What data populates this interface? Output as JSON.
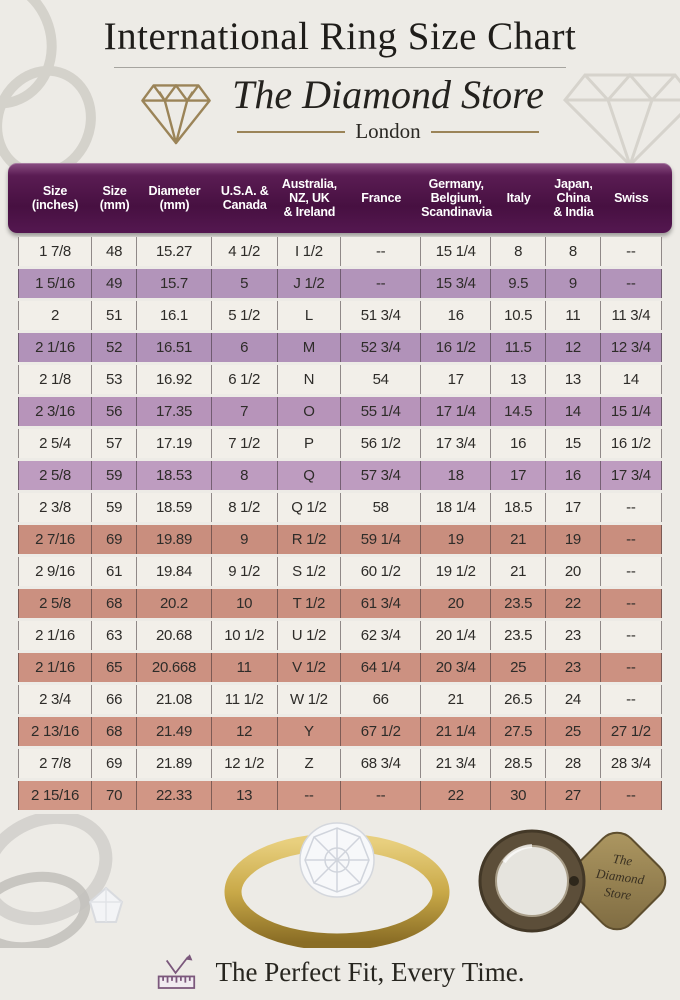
{
  "page": {
    "title": "International Ring Size Chart",
    "brand": {
      "name": "The Diamond Store",
      "city": "London"
    },
    "tagline": "The Perfect Fit, Every Time."
  },
  "photos": {
    "loupe_text_lines": [
      "The",
      "Diamond",
      "Store"
    ]
  },
  "table": {
    "columns": [
      "Size\n(inches)",
      "Size\n(mm)",
      "Diameter\n(mm)",
      "U.S.A. &\nCanada",
      "Australia,\nNZ, UK\n& Ireland",
      "France",
      "Germany,\nBelgium,\nScandinavia",
      "Italy",
      "Japan,\nChina\n& India",
      "Swiss"
    ],
    "rows": [
      {
        "bg": "#f2efe9",
        "cells": [
          "1 7/8",
          "48",
          "15.27",
          "4 1/2",
          "I 1/2",
          "--",
          "15 1/4",
          "8",
          "8",
          "--"
        ]
      },
      {
        "bg": "#b294ba",
        "cells": [
          "1 5/16",
          "49",
          "15.7",
          "5",
          "J 1/2",
          "--",
          "15 3/4",
          "9.5",
          "9",
          "--"
        ]
      },
      {
        "bg": "#f2efe9",
        "cells": [
          "2",
          "51",
          "16.1",
          "5 1/2",
          "L",
          "51 3/4",
          "16",
          "10.5",
          "11",
          "11 3/4"
        ]
      },
      {
        "bg": "#b192b9",
        "cells": [
          "2 1/16",
          "52",
          "16.51",
          "6",
          "M",
          "52 3/4",
          "16 1/2",
          "11.5",
          "12",
          "12 3/4"
        ]
      },
      {
        "bg": "#f2efe9",
        "cells": [
          "2 1/8",
          "53",
          "16.92",
          "6 1/2",
          "N",
          "54",
          "17",
          "13",
          "13",
          "14"
        ]
      },
      {
        "bg": "#b794ba",
        "cells": [
          "2 3/16",
          "56",
          "17.35",
          "7",
          "O",
          "55 1/4",
          "17 1/4",
          "14.5",
          "14",
          "15 1/4"
        ]
      },
      {
        "bg": "#f2efe9",
        "cells": [
          "2 5/4",
          "57",
          "17.19",
          "7 1/2",
          "P",
          "56 1/2",
          "17 3/4",
          "16",
          "15",
          "16 1/2"
        ]
      },
      {
        "bg": "#be9cc0",
        "cells": [
          "2 5/8",
          "59",
          "18.53",
          "8",
          "Q",
          "57 3/4",
          "18",
          "17",
          "16",
          "17 3/4"
        ]
      },
      {
        "bg": "#f2efe9",
        "cells": [
          "2 3/8",
          "59",
          "18.59",
          "8 1/2",
          "Q 1/2",
          "58",
          "18 1/4",
          "18.5",
          "17",
          "--"
        ]
      },
      {
        "bg": "#c98e7e",
        "cells": [
          "2 7/16",
          "69",
          "19.89",
          "9",
          "R 1/2",
          "59 1/4",
          "19",
          "21",
          "19",
          "--"
        ]
      },
      {
        "bg": "#f2efe9",
        "cells": [
          "2 9/16",
          "61",
          "19.84",
          "9 1/2",
          "S 1/2",
          "60 1/2",
          "19 1/2",
          "21",
          "20",
          "--"
        ]
      },
      {
        "bg": "#cb9080",
        "cells": [
          "2 5/8",
          "68",
          "20.2",
          "10",
          "T 1/2",
          "61 3/4",
          "20",
          "23.5",
          "22",
          "--"
        ]
      },
      {
        "bg": "#f2efe9",
        "cells": [
          "2 1/16",
          "63",
          "20.68",
          "10 1/2",
          "U 1/2",
          "62 3/4",
          "20 1/4",
          "23.5",
          "23",
          "--"
        ]
      },
      {
        "bg": "#cc9181",
        "cells": [
          "2 1/16",
          "65",
          "20.668",
          "11",
          "V 1/2",
          "64 1/4",
          "20 3/4",
          "25",
          "23",
          "--"
        ]
      },
      {
        "bg": "#f2efe9",
        "cells": [
          "2 3/4",
          "66",
          "21.08",
          "11 1/2",
          "W 1/2",
          "66",
          "21",
          "26.5",
          "24",
          "--"
        ]
      },
      {
        "bg": "#cf9383",
        "cells": [
          "2 13/16",
          "68",
          "21.49",
          "12",
          "Y",
          "67 1/2",
          "21 1/4",
          "27.5",
          "25",
          "27 1/2"
        ]
      },
      {
        "bg": "#f2efe9",
        "cells": [
          "2 7/8",
          "69",
          "21.89",
          "12 1/2",
          "Z",
          "68 3/4",
          "21 3/4",
          "28.5",
          "28",
          "28 3/4"
        ]
      },
      {
        "bg": "#d19685",
        "cells": [
          "2 15/16",
          "70",
          "22.33",
          "13",
          "--",
          "--",
          "22",
          "30",
          "27",
          "--"
        ]
      }
    ]
  },
  "colors": {
    "page_bg": "#edebe6",
    "header_bg": "#4a1144",
    "header_highlight": "#8a4f83",
    "header_text": "#ffffff",
    "row_white": "#f2efe9",
    "row_purple": "#b294ba",
    "row_salmon": "#cc9181",
    "gold": "#9b8458",
    "title_text": "#1f1d1a",
    "ruler_icon": "#7b587c"
  }
}
